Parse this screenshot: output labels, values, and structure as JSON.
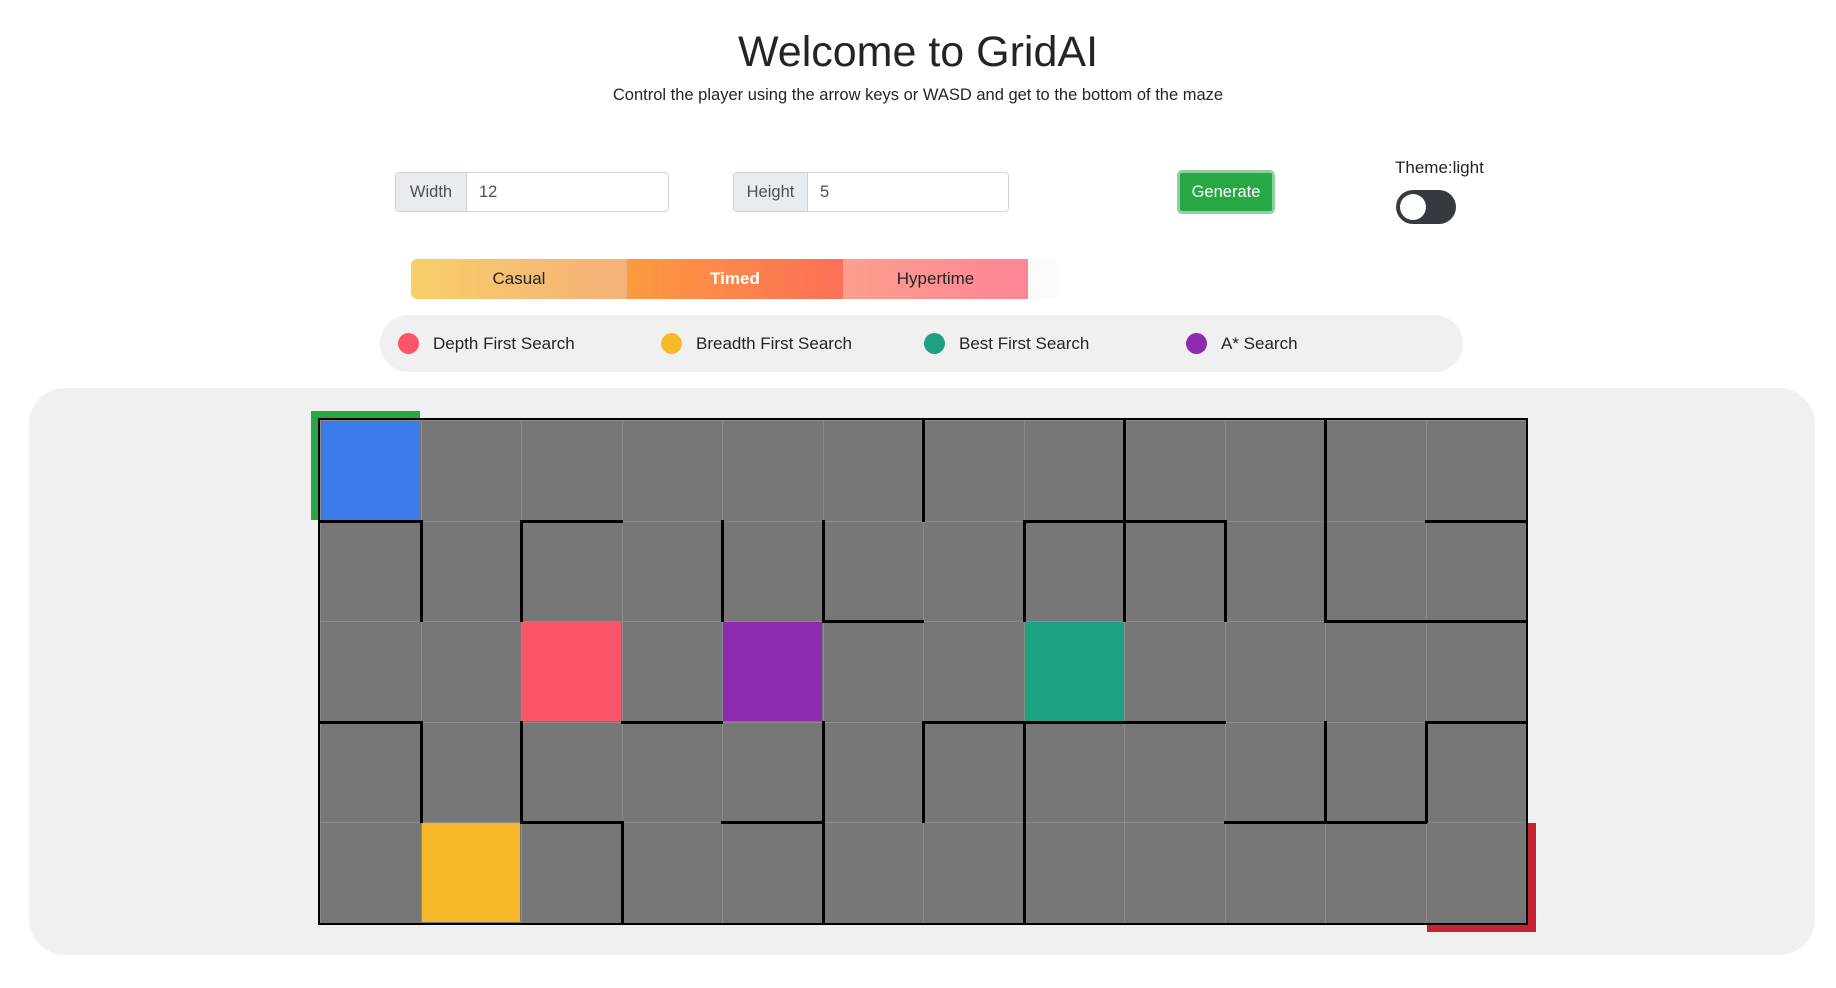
{
  "header": {
    "title": "Welcome to GridAI",
    "subtitle": "Control the player using the arrow keys or WASD and get to the bottom of the maze"
  },
  "controls": {
    "width_label": "Width",
    "width_value": "12",
    "height_label": "Height",
    "height_value": "5",
    "generate_label": "Generate",
    "theme_label": "Theme:light",
    "theme_dark_enabled": false
  },
  "modes": [
    {
      "label": "Casual",
      "selected": false
    },
    {
      "label": "Timed",
      "selected": true
    },
    {
      "label": "Hypertime",
      "selected": false
    }
  ],
  "legend": [
    {
      "label": "Depth First Search",
      "color": "#fc5468"
    },
    {
      "label": "Breadth First Search",
      "color": "#f6b929"
    },
    {
      "label": "Best First Search",
      "color": "#1ca283"
    },
    {
      "label": "A* Search",
      "color": "#8d2aae"
    }
  ],
  "maze": {
    "columns": 12,
    "rows": 5,
    "cell_color": "#777777",
    "wall_color": "#000000",
    "start_marker_color": "#28a745",
    "end_marker_color": "#c82333",
    "player": {
      "row": 0,
      "col": 0,
      "color": "#3b7bea"
    },
    "agents": [
      {
        "name": "Depth First Search",
        "row": 2,
        "col": 2,
        "color": "#fc5468"
      },
      {
        "name": "Breadth First Search",
        "row": 4,
        "col": 1,
        "color": "#f6b929"
      },
      {
        "name": "Best First Search",
        "row": 2,
        "col": 7,
        "color": "#1ca283"
      },
      {
        "name": "A* Search",
        "row": 2,
        "col": 4,
        "color": "#8d2aae"
      }
    ],
    "h_walls": [
      [
        1,
        1
      ],
      [
        1,
        3
      ],
      [
        1,
        8
      ],
      [
        1,
        9
      ],
      [
        1,
        12
      ],
      [
        2,
        6
      ],
      [
        2,
        11
      ],
      [
        2,
        12
      ],
      [
        3,
        1
      ],
      [
        3,
        4
      ],
      [
        3,
        7
      ],
      [
        3,
        8
      ],
      [
        3,
        9
      ],
      [
        3,
        12
      ],
      [
        4,
        3
      ],
      [
        4,
        5
      ],
      [
        4,
        10
      ],
      [
        4,
        11
      ]
    ],
    "v_walls": [
      [
        0,
        6
      ],
      [
        0,
        8
      ],
      [
        0,
        10
      ],
      [
        1,
        1
      ],
      [
        1,
        2
      ],
      [
        1,
        4
      ],
      [
        1,
        5
      ],
      [
        1,
        7
      ],
      [
        1,
        8
      ],
      [
        1,
        9
      ],
      [
        1,
        10
      ],
      [
        3,
        1
      ],
      [
        3,
        2
      ],
      [
        3,
        5
      ],
      [
        3,
        6
      ],
      [
        3,
        7
      ],
      [
        3,
        10
      ],
      [
        3,
        11
      ],
      [
        4,
        3
      ],
      [
        4,
        5
      ],
      [
        4,
        7
      ]
    ]
  }
}
